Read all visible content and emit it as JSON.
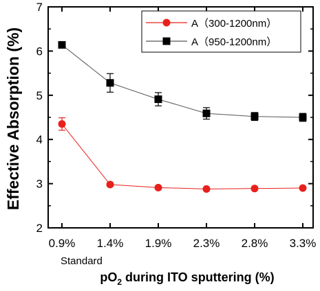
{
  "chart_data": {
    "type": "line",
    "categories": [
      "0.9%",
      "1.4%",
      "1.9%",
      "2.3%",
      "2.8%",
      "3.3%"
    ],
    "xlabel_main": "pO",
    "xlabel_sub": "2",
    "xlabel_rest": " during ITO sputtering (%)",
    "ylabel": "Effective Absorption (%)",
    "ylim": [
      2,
      7
    ],
    "yticks": [
      "2",
      "3",
      "4",
      "5",
      "6",
      "7"
    ],
    "annotation": "Standard",
    "series": [
      {
        "name": "A（300-1200nm）",
        "values": [
          4.35,
          2.98,
          2.91,
          2.88,
          2.89,
          2.9
        ],
        "errors": [
          0.14,
          0.04,
          0.03,
          0.03,
          0.03,
          0.03
        ],
        "color": "#e8201c",
        "marker": "circle"
      },
      {
        "name": "A（950-1200nm）",
        "values": [
          6.14,
          5.28,
          4.91,
          4.59,
          4.52,
          4.5
        ],
        "errors": [
          0.02,
          0.21,
          0.15,
          0.13,
          0.09,
          0.09
        ],
        "color": "#000000",
        "marker": "square"
      }
    ],
    "grid": false,
    "legend_position": "top-right"
  }
}
